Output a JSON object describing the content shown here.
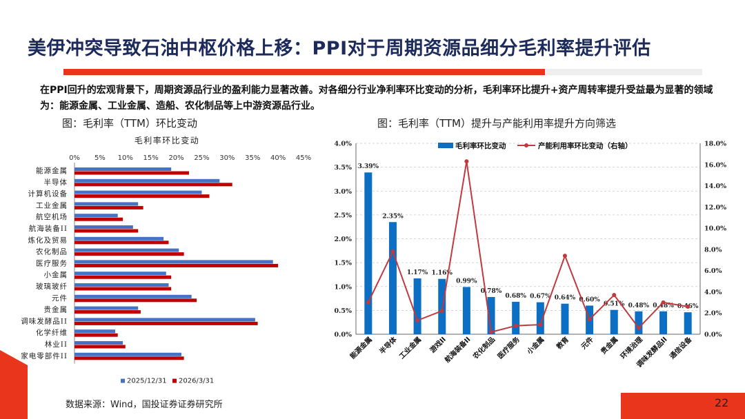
{
  "title": "美伊冲突导致石油中枢价格上移：PPI对于周期资源品细分毛利率提升评估",
  "summary": "在PPI回升的宏观背景下，周期资源品行业的盈利能力显著改善。对各细分行业净利率环比变动的分析，毛利率环比提升+资产周转率提升受益最为显著的领域为：能源金属、工业金属、造船、农化制品等上中游资源品行业。",
  "captions": {
    "left": "图：毛利率（TTM）环比变动",
    "right": "图：毛利率（TTM）提升与产能利用率提升方向筛选"
  },
  "footer": {
    "source": "数据来源：Wind，国投证券证券研究所",
    "page": "22"
  },
  "colors": {
    "accent": "#e8351c",
    "title": "#1c2a5c",
    "bar_blue": "#4472c4",
    "bar_red": "#c00000",
    "col_blue": "#0c6fc4",
    "line_red": "#c0393f"
  },
  "chart_data": [
    {
      "type": "bar",
      "orientation": "horizontal",
      "title": "毛利率环比变动",
      "categories": [
        "能源金属",
        "半导体",
        "计算机设备",
        "工业金属",
        "航空机场",
        "航海装备II",
        "炼化及贸易",
        "农化制品",
        "医疗服务",
        "小金属",
        "玻璃玻纤",
        "元件",
        "贵金属",
        "调味发酵品II",
        "化学纤维",
        "林业II",
        "家电零部件II"
      ],
      "series": [
        {
          "name": "2025/12/31",
          "values": [
            19,
            28.5,
            25,
            12.5,
            8.5,
            11.5,
            17.5,
            20.5,
            39,
            18,
            18.5,
            23,
            12.5,
            35.5,
            8,
            9.5,
            21
          ]
        },
        {
          "name": "2026/3/31",
          "values": [
            22.5,
            31,
            26.5,
            13.5,
            9.5,
            12.5,
            18.5,
            21.5,
            40,
            19,
            19,
            24,
            13,
            36,
            8.5,
            10,
            21.5
          ]
        }
      ],
      "xlim": [
        0,
        45
      ],
      "xticks": [
        "0%",
        "5%",
        "10%",
        "15%",
        "20%",
        "25%",
        "30%",
        "35%",
        "40%",
        "45%"
      ],
      "legend_position": "bottom"
    },
    {
      "type": "bar+line",
      "categories": [
        "能源金属",
        "半导体",
        "工业金属",
        "游戏II",
        "航海装备II",
        "农化制品",
        "医疗服务",
        "小金属",
        "教育",
        "元件",
        "贵金属",
        "环境治理",
        "调味发酵品II",
        "通信设备"
      ],
      "series": [
        {
          "name": "毛利率环比变动",
          "type": "bar",
          "axis": "left",
          "values": [
            3.39,
            2.35,
            1.17,
            1.16,
            0.99,
            0.78,
            0.68,
            0.67,
            0.64,
            0.6,
            0.51,
            0.48,
            0.48,
            0.46
          ],
          "labels": [
            "3.39%",
            "2.35%",
            "1.17%",
            "1.16%",
            "0.99%",
            "0.78%",
            "0.68%",
            "0.67%",
            "0.64%",
            "0.60%",
            "0.51%",
            "0.48%",
            "0.48%",
            "0.46%"
          ]
        },
        {
          "name": "产能利用率环比变动（右轴）",
          "type": "line",
          "axis": "right",
          "values": [
            3.0,
            7.8,
            1.3,
            2.2,
            16.3,
            0.2,
            0.8,
            0.9,
            7.4,
            1.4,
            3.7,
            0.6,
            3.0,
            2.6
          ]
        }
      ],
      "ylim_left": [
        0,
        4.0
      ],
      "ylim_right": [
        0,
        18.0
      ],
      "yticks_left": [
        "0.0%",
        "0.5%",
        "1.0%",
        "1.5%",
        "2.0%",
        "2.5%",
        "3.0%",
        "3.5%",
        "4.0%"
      ],
      "yticks_right": [
        "0.0%",
        "2.0%",
        "4.0%",
        "6.0%",
        "8.0%",
        "10.0%",
        "12.0%",
        "14.0%",
        "16.0%",
        "18.0%"
      ],
      "legend_position": "top",
      "grid": "dashed horizontal"
    }
  ]
}
